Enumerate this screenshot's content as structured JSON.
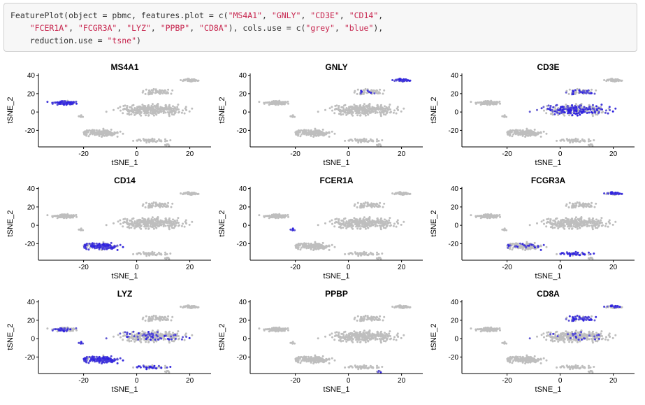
{
  "code": {
    "lines": [
      [
        {
          "t": "FeaturePlot(object = pbmc, features.plot = c("
        },
        {
          "t": "\"MS4A1\"",
          "s": 1
        },
        {
          "t": ", "
        },
        {
          "t": "\"GNLY\"",
          "s": 1
        },
        {
          "t": ", "
        },
        {
          "t": "\"CD3E\"",
          "s": 1
        },
        {
          "t": ", "
        },
        {
          "t": "\"CD14\"",
          "s": 1
        },
        {
          "t": ","
        }
      ],
      [
        {
          "t": "    "
        },
        {
          "t": "\"FCER1A\"",
          "s": 1
        },
        {
          "t": ", "
        },
        {
          "t": "\"FCGR3A\"",
          "s": 1
        },
        {
          "t": ", "
        },
        {
          "t": "\"LYZ\"",
          "s": 1
        },
        {
          "t": ", "
        },
        {
          "t": "\"PPBP\"",
          "s": 1
        },
        {
          "t": ", "
        },
        {
          "t": "\"CD8A\"",
          "s": 1
        },
        {
          "t": "), cols.use = c("
        },
        {
          "t": "\"grey\"",
          "s": 1
        },
        {
          "t": ", "
        },
        {
          "t": "\"blue\"",
          "s": 1
        },
        {
          "t": "),"
        }
      ],
      [
        {
          "t": "    reduction.use = "
        },
        {
          "t": "\"tsne\"",
          "s": 1
        },
        {
          "t": ")"
        }
      ]
    ]
  },
  "colors": {
    "low": "#bebebe",
    "high": "#2b1ee0",
    "code_string": "#c7254e",
    "code_text": "#333333"
  },
  "chart_data": [
    {
      "type": "scatter",
      "title": "MS4A1",
      "xlabel": "tSNE_1",
      "ylabel": "tSNE_2",
      "xlim": [
        -37,
        28
      ],
      "ylim": [
        -38,
        42
      ],
      "xticks": [
        -20,
        0,
        20
      ],
      "yticks": [
        -20,
        0,
        20,
        40
      ],
      "grid": false,
      "high_clusters": {
        "B": 0.85
      }
    },
    {
      "type": "scatter",
      "title": "GNLY",
      "xlabel": "tSNE_1",
      "ylabel": "tSNE_2",
      "xlim": [
        -37,
        28
      ],
      "ylim": [
        -38,
        42
      ],
      "xticks": [
        -20,
        0,
        20
      ],
      "yticks": [
        -20,
        0,
        20,
        40
      ],
      "grid": false,
      "high_clusters": {
        "NK": 0.9,
        "CD8": 0.15
      }
    },
    {
      "type": "scatter",
      "title": "CD3E",
      "xlabel": "tSNE_1",
      "ylabel": "tSNE_2",
      "xlim": [
        -37,
        28
      ],
      "ylim": [
        -38,
        42
      ],
      "xticks": [
        -20,
        0,
        20
      ],
      "yticks": [
        -20,
        0,
        20,
        40
      ],
      "grid": false,
      "high_clusters": {
        "T": 0.55,
        "CD8": 0.5
      }
    },
    {
      "type": "scatter",
      "title": "CD14",
      "xlabel": "tSNE_1",
      "ylabel": "tSNE_2",
      "xlim": [
        -37,
        28
      ],
      "ylim": [
        -38,
        42
      ],
      "xticks": [
        -20,
        0,
        20
      ],
      "yticks": [
        -20,
        0,
        20,
        40
      ],
      "grid": false,
      "high_clusters": {
        "CD14Mono": 0.75
      }
    },
    {
      "type": "scatter",
      "title": "FCER1A",
      "xlabel": "tSNE_1",
      "ylabel": "tSNE_2",
      "xlim": [
        -37,
        28
      ],
      "ylim": [
        -38,
        42
      ],
      "xticks": [
        -20,
        0,
        20
      ],
      "yticks": [
        -20,
        0,
        20,
        40
      ],
      "grid": false,
      "high_clusters": {
        "DC": 0.8
      }
    },
    {
      "type": "scatter",
      "title": "FCGR3A",
      "xlabel": "tSNE_1",
      "ylabel": "tSNE_2",
      "xlim": [
        -37,
        28
      ],
      "ylim": [
        -38,
        42
      ],
      "xticks": [
        -20,
        0,
        20
      ],
      "yticks": [
        -20,
        0,
        20,
        40
      ],
      "grid": false,
      "high_clusters": {
        "NK": 0.75,
        "FCGR3AMono": 0.8,
        "CD14Mono": 0.15
      }
    },
    {
      "type": "scatter",
      "title": "LYZ",
      "xlabel": "tSNE_1",
      "ylabel": "tSNE_2",
      "xlim": [
        -37,
        28
      ],
      "ylim": [
        -38,
        42
      ],
      "xticks": [
        -20,
        0,
        20
      ],
      "yticks": [
        -20,
        0,
        20,
        40
      ],
      "grid": false,
      "high_clusters": {
        "CD14Mono": 0.95,
        "FCGR3AMono": 0.55,
        "B": 0.35,
        "DC": 0.8,
        "T": 0.2
      }
    },
    {
      "type": "scatter",
      "title": "PPBP",
      "xlabel": "tSNE_1",
      "ylabel": "tSNE_2",
      "xlim": [
        -37,
        28
      ],
      "ylim": [
        -38,
        42
      ],
      "xticks": [
        -20,
        0,
        20
      ],
      "yticks": [
        -20,
        0,
        20,
        40
      ],
      "grid": false,
      "high_clusters": {
        "Platelet": 0.5
      }
    },
    {
      "type": "scatter",
      "title": "CD8A",
      "xlabel": "tSNE_1",
      "ylabel": "tSNE_2",
      "xlim": [
        -37,
        28
      ],
      "ylim": [
        -38,
        42
      ],
      "xticks": [
        -20,
        0,
        20
      ],
      "yticks": [
        -20,
        0,
        20,
        40
      ],
      "grid": false,
      "high_clusters": {
        "CD8": 0.8,
        "NK": 0.35,
        "T": 0.1
      }
    }
  ]
}
